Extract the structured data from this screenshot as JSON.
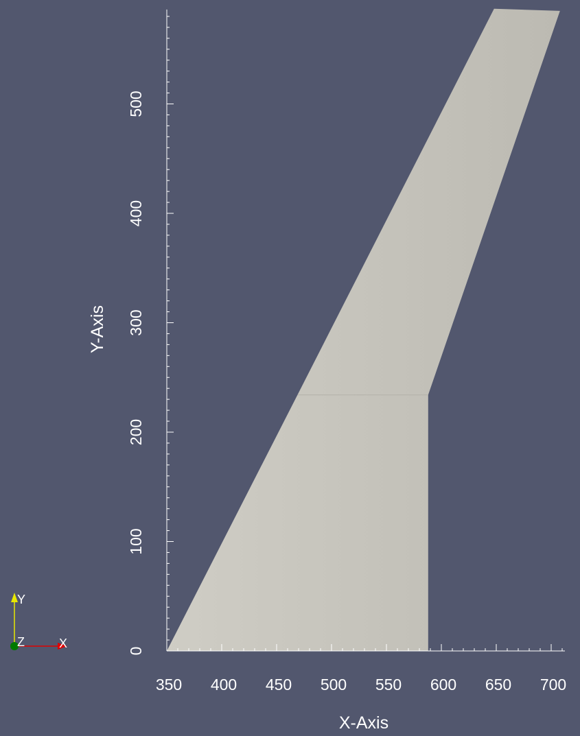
{
  "viewer": {
    "background_color": "#52576e",
    "mesh_color": "#c8c6bd",
    "axis_line_color": "#ffffff",
    "label_color": "#ffffff"
  },
  "scene": {
    "object": "wing-planform",
    "outline": [
      [
        350,
        0
      ],
      [
        588,
        0
      ],
      [
        588,
        234
      ],
      [
        708,
        585
      ],
      [
        648,
        587
      ],
      [
        469,
        234
      ]
    ],
    "kink_y": 234
  },
  "axes": {
    "x_title": "X-Axis",
    "y_title": "Y-Axis",
    "x_range": [
      350,
      710
    ],
    "y_range": [
      0,
      585
    ],
    "x_major_ticks": [
      350,
      400,
      450,
      500,
      550,
      600,
      650,
      700
    ],
    "x_tick_labels": [
      "350",
      "400",
      "450",
      "500",
      "550",
      "600",
      "650",
      "700"
    ],
    "y_major_ticks": [
      0,
      100,
      200,
      300,
      400,
      500
    ],
    "y_tick_labels": [
      "0",
      "100",
      "200",
      "300",
      "400",
      "500"
    ],
    "minor_step": 10
  },
  "orientation": {
    "y_label": "Y",
    "x_label": "X",
    "z_label": "Z",
    "y_color": "#e8e800",
    "x_color": "#e00000",
    "z_color": "#007a00"
  }
}
